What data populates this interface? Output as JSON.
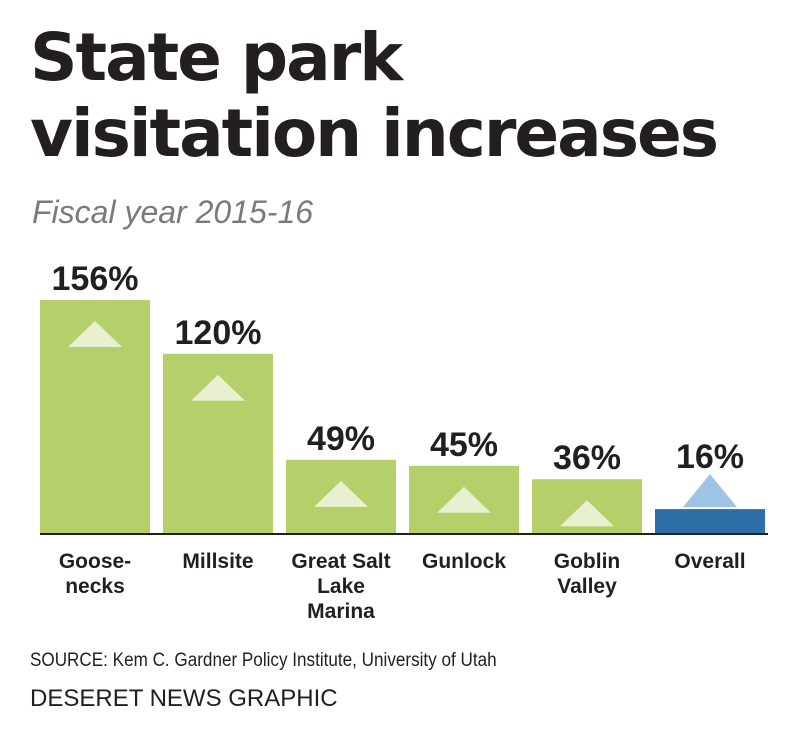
{
  "title_line1": "State park",
  "title_line2": "visitation increases",
  "subtitle": "Fiscal year 2015-16",
  "source": "SOURCE: Kem C. Gardner Policy Institute, University of Utah",
  "credit": "DESERET NEWS GRAPHIC",
  "colors": {
    "bar": "#b5cf6b",
    "bar_overall": "#2e6ea6",
    "triangle": "#e8f0d0",
    "triangle_overall": "#9dc3e6",
    "text": "#231f20",
    "subtitle": "#7a7a7a"
  },
  "chart_data": {
    "type": "bar",
    "title": "State park visitation increases",
    "subtitle": "Fiscal year 2015-16",
    "categories": [
      [
        "Goose-",
        "necks"
      ],
      [
        "Millsite"
      ],
      [
        "Great Salt",
        "Lake",
        "Marina"
      ],
      [
        "Gunlock"
      ],
      [
        "Goblin",
        "Valley"
      ],
      [
        "Overall"
      ]
    ],
    "values": [
      156,
      120,
      49,
      45,
      36,
      16
    ],
    "labels": [
      "156%",
      "120%",
      "49%",
      "45%",
      "36%",
      "16%"
    ],
    "unit": "%",
    "ylim": [
      0,
      156
    ],
    "grid": false,
    "legend": "none"
  }
}
